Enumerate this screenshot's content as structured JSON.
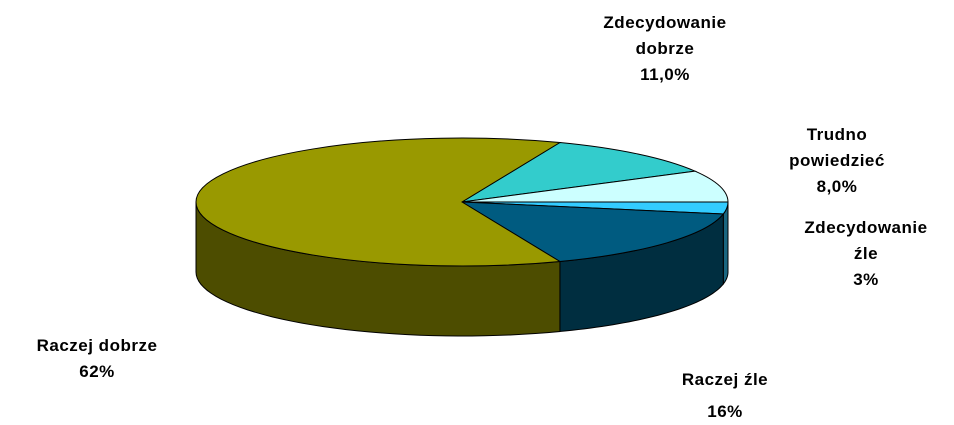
{
  "chart_data": {
    "type": "pie",
    "categories": [
      "Zdecydowanie dobrze",
      "Trudno powiedzieć",
      "Zdecydowanie źle",
      "Raczej źle",
      "Raczej dobrze"
    ],
    "values": [
      11,
      8,
      3,
      16,
      62
    ],
    "value_labels": [
      "11,0%",
      "8,0%",
      "3%",
      "16%",
      "62%"
    ],
    "colors": [
      "#33cccc",
      "#ccffff",
      "#33ccff",
      "#005b80",
      "#999900"
    ]
  }
}
